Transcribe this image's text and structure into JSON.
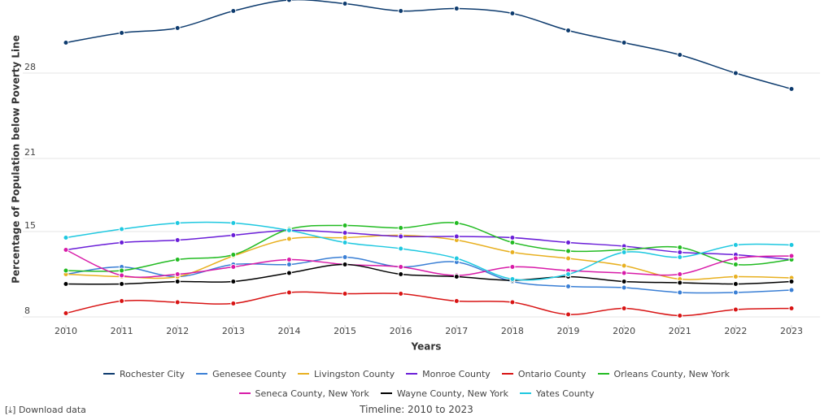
{
  "chart_data": {
    "type": "line",
    "y_label": "Percentage of Population below Poverty Line",
    "x_label": "Years",
    "x": [
      2010,
      2011,
      2012,
      2013,
      2014,
      2015,
      2016,
      2017,
      2018,
      2019,
      2020,
      2021,
      2022,
      2023
    ],
    "xlim": [
      2010,
      2023
    ],
    "xticks": [
      2010,
      2011,
      2012,
      2013,
      2014,
      2015,
      2016,
      2017,
      2018,
      2019,
      2020,
      2021,
      2022,
      2023
    ],
    "ylim": [
      7,
      34
    ],
    "yticks": [
      8,
      15,
      21,
      28
    ],
    "grid": true,
    "series": [
      {
        "name": "Rochester City",
        "color": "#0d3b6e",
        "values": [
          30.5,
          31.3,
          31.7,
          33.1,
          34.0,
          33.7,
          33.1,
          33.3,
          32.9,
          31.5,
          30.5,
          29.5,
          28.0,
          26.7
        ]
      },
      {
        "name": "Genesee County",
        "color": "#3a7fd5",
        "values": [
          11.5,
          12.1,
          11.3,
          12.3,
          12.3,
          12.9,
          12.1,
          12.5,
          10.9,
          10.5,
          10.4,
          10.0,
          10.0,
          10.2
        ]
      },
      {
        "name": "Livingston County",
        "color": "#e8b020",
        "values": [
          11.5,
          11.3,
          11.3,
          13.0,
          14.4,
          14.5,
          14.7,
          14.3,
          13.3,
          12.8,
          12.2,
          11.1,
          11.3,
          11.2
        ]
      },
      {
        "name": "Monroe County",
        "color": "#6a1ed8",
        "values": [
          13.5,
          14.1,
          14.3,
          14.7,
          15.1,
          14.9,
          14.6,
          14.6,
          14.5,
          14.1,
          13.8,
          13.3,
          13.1,
          12.7
        ]
      },
      {
        "name": "Ontario County",
        "color": "#d81414",
        "values": [
          8.3,
          9.3,
          9.2,
          9.1,
          10.0,
          9.9,
          9.9,
          9.3,
          9.2,
          8.2,
          8.7,
          8.1,
          8.6,
          8.7
        ]
      },
      {
        "name": "Orleans County, New York",
        "color": "#22bb22",
        "values": [
          11.8,
          11.8,
          12.7,
          13.1,
          15.2,
          15.5,
          15.3,
          15.7,
          14.1,
          13.4,
          13.5,
          13.7,
          12.3,
          12.7
        ]
      },
      {
        "name": "Seneca County, New York",
        "color": "#d81ba8",
        "values": [
          13.5,
          11.4,
          11.5,
          12.1,
          12.7,
          12.3,
          12.1,
          11.4,
          12.1,
          11.8,
          11.6,
          11.5,
          12.8,
          13.0
        ]
      },
      {
        "name": "Wayne County, New York",
        "color": "#000000",
        "values": [
          10.7,
          10.7,
          10.9,
          10.9,
          11.6,
          12.3,
          11.5,
          11.3,
          11.0,
          11.3,
          10.9,
          10.8,
          10.7,
          10.9
        ]
      },
      {
        "name": "Yates County",
        "color": "#1ec8e0",
        "values": [
          14.5,
          15.2,
          15.7,
          15.7,
          15.1,
          14.1,
          13.6,
          12.8,
          11.1,
          11.5,
          13.3,
          12.9,
          13.9,
          13.9
        ]
      }
    ]
  },
  "download": "Download data",
  "timeline": "Timeline: 2010 to 2023"
}
